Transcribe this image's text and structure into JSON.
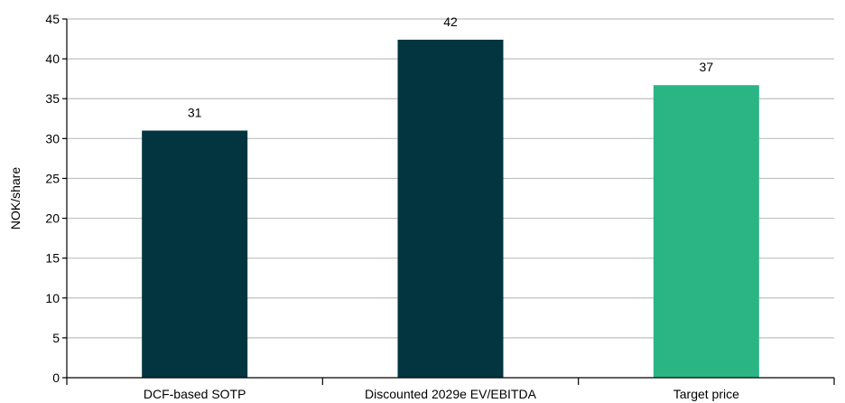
{
  "chart_data": {
    "type": "bar",
    "categories": [
      "DCF-based SOTP",
      "Discounted 2029e EV/EBITDA",
      "Target price"
    ],
    "values": [
      31,
      42.4,
      36.7
    ],
    "data_labels": [
      "31",
      "42",
      "37"
    ],
    "bar_colors": [
      "#033540",
      "#033540",
      "#2bb584"
    ],
    "title": "",
    "xlabel": "",
    "ylabel": "NOK/share",
    "ylim": [
      0,
      45
    ],
    "yticks": [
      0,
      5,
      10,
      15,
      20,
      25,
      30,
      35,
      40,
      45
    ],
    "grid": true,
    "legend": false
  }
}
